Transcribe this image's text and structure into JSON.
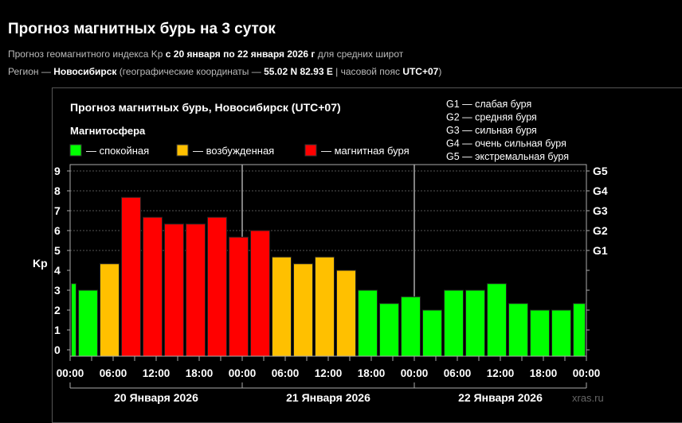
{
  "header": {
    "title": "Прогноз магнитных бурь на 3 суток",
    "line1_prefix": "Прогноз геомагнитного индекса Kp ",
    "line1_dates": "с 20 января по 22 января 2026 г",
    "line1_suffix": " для средних широт",
    "line2_prefix": "Регион — ",
    "line2_city": "Новосибирск",
    "line2_mid": " (географические координаты — ",
    "line2_coords": "55.02 N 82.93 E",
    "line2_tz_prefix": " | часовой пояс ",
    "line2_tz": "UTC+07",
    "line2_end": ")"
  },
  "chart_data": {
    "type": "bar",
    "title": "Прогноз магнитных бурь, Новосибирск (UTC+07)",
    "legend_title": "Магнитосфера",
    "legend": [
      {
        "label": "— спокойная",
        "color": "#00ff00"
      },
      {
        "label": "— возбужденная",
        "color": "#ffc000"
      },
      {
        "label": "— магнитная буря",
        "color": "#ff0000"
      }
    ],
    "g_legend": [
      "G1 — слабая буря",
      "G2 — средняя буря",
      "G3 — сильная буря",
      "G4 — очень сильная буря",
      "G5 — экстремальная буря"
    ],
    "ylabel": "Kp",
    "ylim": [
      0,
      9
    ],
    "y_ticks": [
      "0",
      "1",
      "2",
      "3",
      "4",
      "5",
      "6",
      "7",
      "8",
      "9"
    ],
    "y2_ticks": [
      "G1",
      "G2",
      "G3",
      "G4",
      "G5"
    ],
    "x_ticks": [
      "00:00",
      "06:00",
      "12:00",
      "18:00",
      "00:00",
      "06:00",
      "12:00",
      "18:00",
      "00:00",
      "06:00",
      "12:00",
      "18:00",
      "00:00"
    ],
    "days": [
      "20 Января 2026",
      "21 Января 2026",
      "22 Января 2026"
    ],
    "bar_interval_hours": 3,
    "first_bar_start": "19 Января 22:00",
    "values": [
      3.33,
      3,
      4.33,
      7.67,
      6.67,
      6.33,
      6.33,
      6.67,
      5.67,
      6,
      4.67,
      4.33,
      4.67,
      4,
      3,
      2.33,
      2.67,
      2,
      3,
      3,
      3.33,
      2.33,
      2,
      2,
      2.33
    ],
    "thresholds": {
      "quiet_below": 4,
      "storm_from": 5
    },
    "grid": true,
    "watermark": "xras.ru"
  }
}
